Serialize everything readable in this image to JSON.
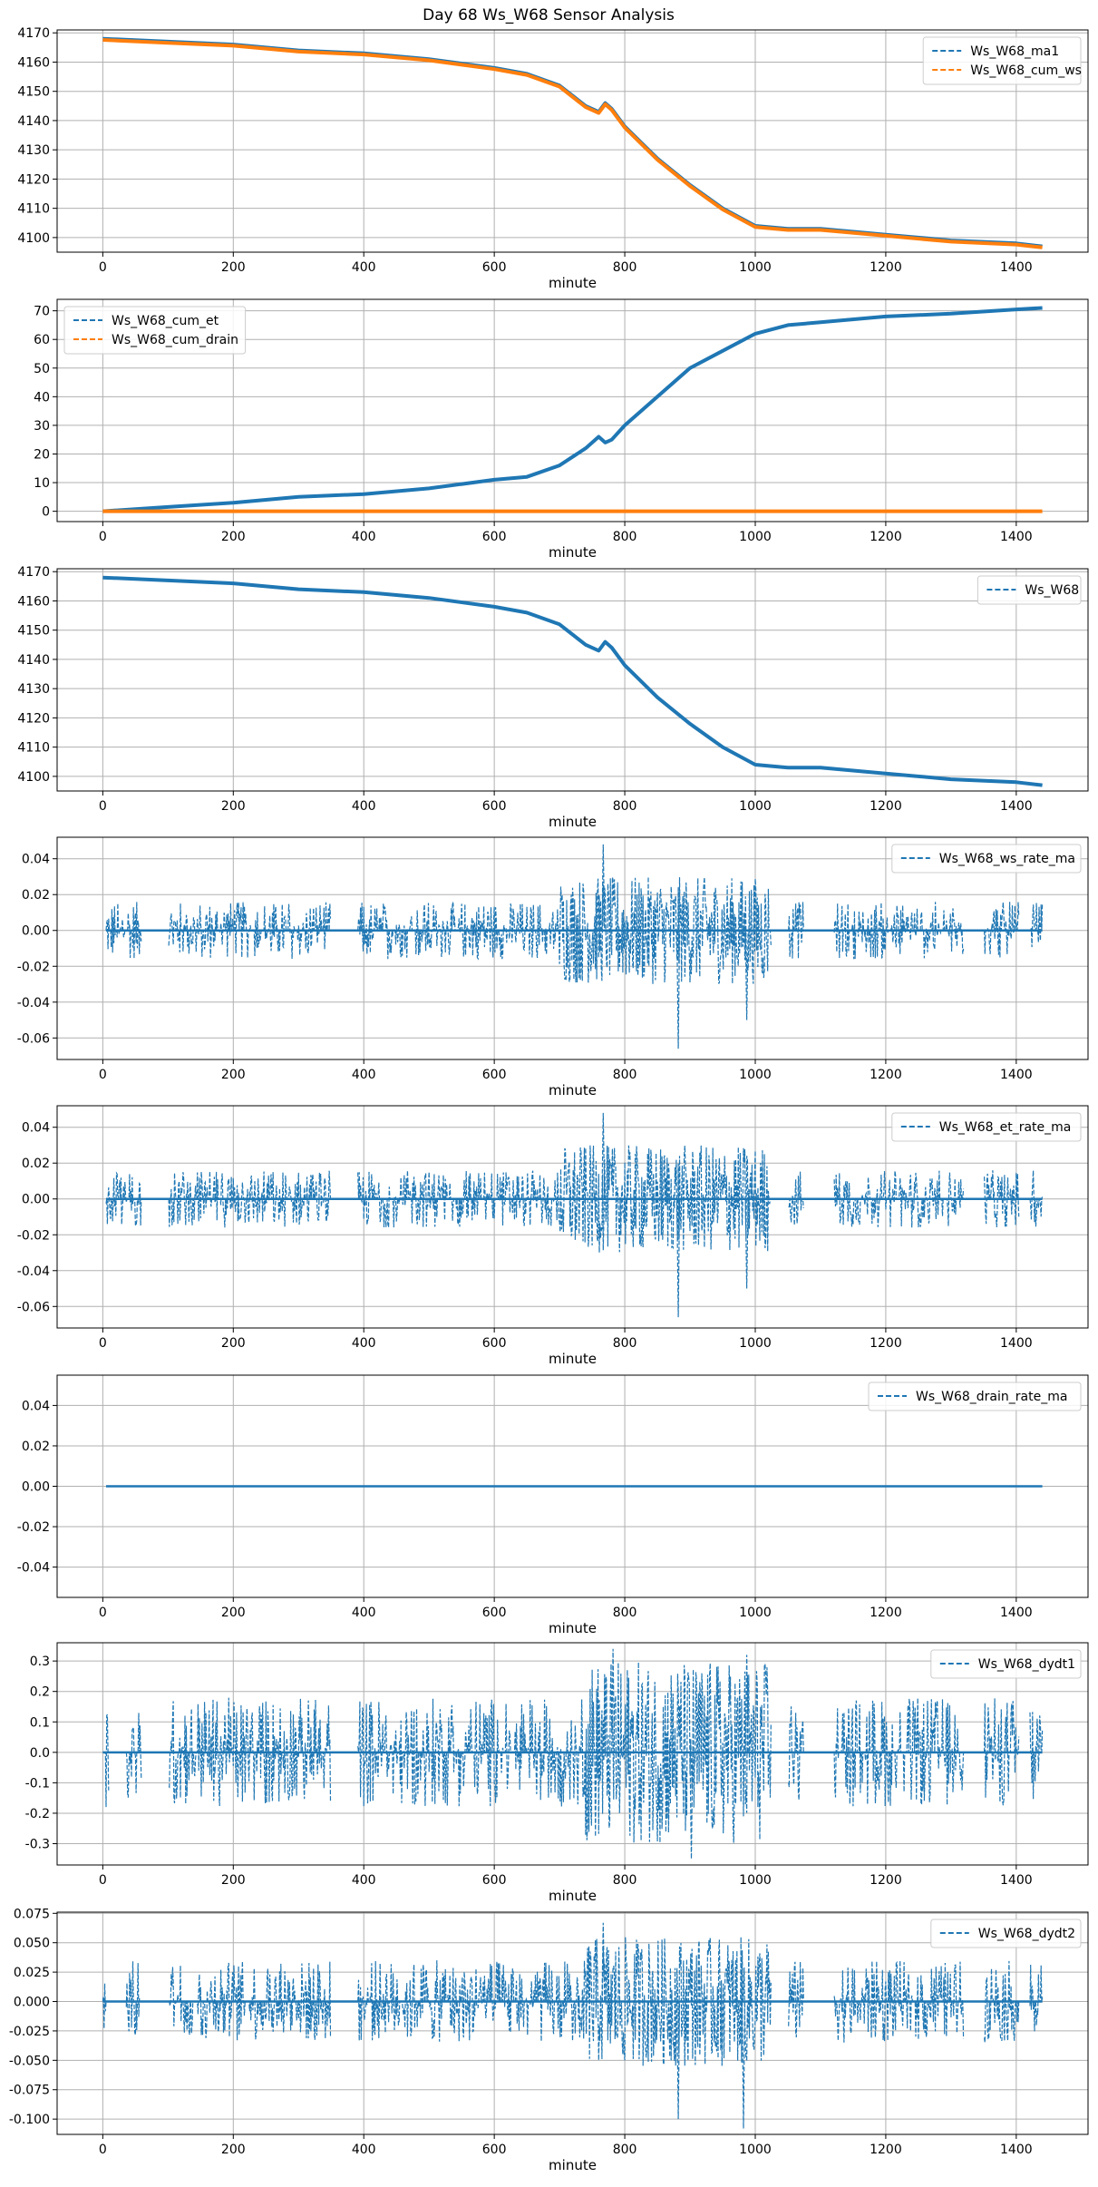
{
  "title": "Day 68 Ws_W68 Sensor Analysis",
  "colors": {
    "blue": "#1f77b4",
    "orange": "#ff7f0e",
    "grid": "#b0b0b0"
  },
  "chart_data": [
    {
      "type": "line",
      "xlabel": "minute",
      "legend_loc": "upper-right",
      "xlim": [
        -70,
        1510
      ],
      "ylim": [
        4095,
        4171
      ],
      "xticks": [
        0,
        200,
        400,
        600,
        800,
        1000,
        1200,
        1400
      ],
      "yticks": [
        4100,
        4110,
        4120,
        4130,
        4140,
        4150,
        4160,
        4170
      ],
      "tick_labels_y": [
        "4100",
        "4110",
        "4120",
        "4130",
        "4140",
        "4150",
        "4160",
        "4170"
      ],
      "series": [
        {
          "name": "Ws_W68_ma1",
          "color": "#1f77b4",
          "style": "dashed",
          "kind": "points",
          "x": [
            0,
            100,
            200,
            300,
            400,
            500,
            600,
            650,
            700,
            740,
            760,
            770,
            780,
            800,
            850,
            900,
            950,
            1000,
            1050,
            1100,
            1200,
            1300,
            1400,
            1440
          ],
          "y": [
            4168,
            4167,
            4166,
            4164,
            4163,
            4161,
            4158,
            4156,
            4152,
            4145,
            4143,
            4146,
            4144,
            4138,
            4127,
            4118,
            4110,
            4104,
            4103,
            4103,
            4101,
            4099,
            4098,
            4097
          ]
        },
        {
          "name": "Ws_W68_cum_ws",
          "color": "#ff7f0e",
          "style": "dashed",
          "kind": "points",
          "x": [
            0,
            100,
            200,
            300,
            400,
            500,
            600,
            650,
            700,
            740,
            760,
            770,
            780,
            800,
            850,
            900,
            950,
            1000,
            1050,
            1100,
            1200,
            1300,
            1400,
            1440
          ],
          "y": [
            4167.6,
            4166.6,
            4165.6,
            4163.6,
            4162.6,
            4160.6,
            4157.6,
            4155.6,
            4151.6,
            4144.6,
            4142.6,
            4145.6,
            4143.6,
            4137.6,
            4126.6,
            4117.6,
            4109.6,
            4103.6,
            4102.6,
            4102.6,
            4100.6,
            4098.6,
            4097.6,
            4096.6
          ]
        }
      ]
    },
    {
      "type": "line",
      "xlabel": "minute",
      "legend_loc": "upper-left",
      "xlim": [
        -70,
        1510
      ],
      "ylim": [
        -3.6,
        74
      ],
      "xticks": [
        0,
        200,
        400,
        600,
        800,
        1000,
        1200,
        1400
      ],
      "yticks": [
        0,
        10,
        20,
        30,
        40,
        50,
        60,
        70
      ],
      "tick_labels_y": [
        "0",
        "10",
        "20",
        "30",
        "40",
        "50",
        "60",
        "70"
      ],
      "series": [
        {
          "name": "Ws_W68_cum_et",
          "color": "#1f77b4",
          "style": "dashed",
          "kind": "points",
          "x": [
            0,
            100,
            200,
            300,
            400,
            500,
            600,
            650,
            700,
            740,
            760,
            770,
            780,
            800,
            850,
            900,
            950,
            1000,
            1050,
            1100,
            1200,
            1300,
            1400,
            1440
          ],
          "y": [
            0,
            1.5,
            3,
            5,
            6,
            8,
            11,
            12,
            16,
            22,
            26,
            24,
            25,
            30,
            40,
            50,
            56,
            62,
            65,
            66,
            68,
            69,
            70.5,
            71
          ]
        },
        {
          "name": "Ws_W68_cum_drain",
          "color": "#ff7f0e",
          "style": "dashed",
          "kind": "points",
          "x": [
            0,
            1440
          ],
          "y": [
            0,
            0
          ]
        }
      ]
    },
    {
      "type": "line",
      "xlabel": "minute",
      "legend_loc": "upper-right",
      "xlim": [
        -70,
        1510
      ],
      "ylim": [
        4095,
        4171
      ],
      "xticks": [
        0,
        200,
        400,
        600,
        800,
        1000,
        1200,
        1400
      ],
      "yticks": [
        4100,
        4110,
        4120,
        4130,
        4140,
        4150,
        4160,
        4170
      ],
      "tick_labels_y": [
        "4100",
        "4110",
        "4120",
        "4130",
        "4140",
        "4150",
        "4160",
        "4170"
      ],
      "series": [
        {
          "name": "Ws_W68",
          "color": "#1f77b4",
          "style": "dashed",
          "kind": "points",
          "x": [
            0,
            100,
            200,
            300,
            400,
            500,
            600,
            650,
            700,
            740,
            760,
            770,
            780,
            800,
            850,
            900,
            950,
            1000,
            1050,
            1100,
            1200,
            1300,
            1400,
            1440
          ],
          "y": [
            4168,
            4167,
            4166,
            4164,
            4163,
            4161,
            4158,
            4156,
            4152,
            4145,
            4143,
            4146,
            4144,
            4138,
            4127,
            4118,
            4110,
            4104,
            4103,
            4103,
            4101,
            4099,
            4098,
            4097
          ]
        }
      ]
    },
    {
      "type": "line",
      "xlabel": "minute",
      "legend_loc": "upper-right",
      "xlim": [
        -70,
        1510
      ],
      "ylim": [
        -0.072,
        0.052
      ],
      "xticks": [
        0,
        200,
        400,
        600,
        800,
        1000,
        1200,
        1400
      ],
      "yticks": [
        -0.06,
        -0.04,
        -0.02,
        0.0,
        0.02,
        0.04
      ],
      "tick_labels_y": [
        "-0.06",
        "-0.04",
        "-0.02",
        "0.00",
        "0.02",
        "0.04"
      ],
      "series": [
        {
          "name": "Ws_W68_ws_rate_ma",
          "color": "#1f77b4",
          "style": "dashed",
          "kind": "noise",
          "x_range": [
            5,
            1440
          ],
          "amp": 0.016,
          "burst_amp": 0.03,
          "burst_range": [
            700,
            1020
          ],
          "spike_x": [
            765,
            880,
            985
          ],
          "spike_y": [
            0.048,
            -0.066,
            -0.05
          ],
          "gaps": [
            [
              60,
              100
            ],
            [
              350,
              390
            ],
            [
              1025,
              1050
            ],
            [
              1075,
              1120
            ],
            [
              1320,
              1350
            ],
            [
              1405,
              1420
            ]
          ]
        }
      ]
    },
    {
      "type": "line",
      "xlabel": "minute",
      "legend_loc": "upper-right",
      "xlim": [
        -70,
        1510
      ],
      "ylim": [
        -0.072,
        0.052
      ],
      "xticks": [
        0,
        200,
        400,
        600,
        800,
        1000,
        1200,
        1400
      ],
      "yticks": [
        -0.06,
        -0.04,
        -0.02,
        0.0,
        0.02,
        0.04
      ],
      "tick_labels_y": [
        "-0.06",
        "-0.04",
        "-0.02",
        "0.00",
        "0.02",
        "0.04"
      ],
      "series": [
        {
          "name": "Ws_W68_et_rate_ma",
          "color": "#1f77b4",
          "style": "dashed",
          "kind": "noise",
          "x_range": [
            5,
            1440
          ],
          "amp": 0.016,
          "burst_amp": 0.03,
          "burst_range": [
            700,
            1020
          ],
          "spike_x": [
            765,
            880,
            985
          ],
          "spike_y": [
            0.048,
            -0.066,
            -0.05
          ],
          "gaps": [
            [
              60,
              100
            ],
            [
              350,
              390
            ],
            [
              1025,
              1050
            ],
            [
              1075,
              1120
            ],
            [
              1320,
              1350
            ],
            [
              1405,
              1420
            ]
          ]
        }
      ]
    },
    {
      "type": "line",
      "xlabel": "minute",
      "legend_loc": "upper-right",
      "xlim": [
        -70,
        1510
      ],
      "ylim": [
        -0.055,
        0.055
      ],
      "xticks": [
        0,
        200,
        400,
        600,
        800,
        1000,
        1200,
        1400
      ],
      "yticks": [
        -0.04,
        -0.02,
        0.0,
        0.02,
        0.04
      ],
      "tick_labels_y": [
        "-0.04",
        "-0.02",
        "0.00",
        "0.02",
        "0.04"
      ],
      "series": [
        {
          "name": "Ws_W68_drain_rate_ma",
          "color": "#1f77b4",
          "style": "dashed",
          "kind": "points",
          "x": [
            5,
            1440
          ],
          "y": [
            0,
            0
          ]
        }
      ]
    },
    {
      "type": "line",
      "xlabel": "minute",
      "legend_loc": "upper-right",
      "xlim": [
        -70,
        1510
      ],
      "ylim": [
        -0.37,
        0.36
      ],
      "xticks": [
        0,
        200,
        400,
        600,
        800,
        1000,
        1200,
        1400
      ],
      "yticks": [
        -0.3,
        -0.2,
        -0.1,
        0.0,
        0.1,
        0.2,
        0.3
      ],
      "tick_labels_y": [
        "-0.3",
        "-0.2",
        "-0.1",
        "0.0",
        "0.1",
        "0.2",
        "0.3"
      ],
      "series": [
        {
          "name": "Ws_W68_dydt1",
          "color": "#1f77b4",
          "style": "dashed",
          "kind": "noise",
          "x_range": [
            0,
            1440
          ],
          "amp": 0.18,
          "burst_amp": 0.3,
          "burst_range": [
            740,
            1020
          ],
          "spike_x": [
            780,
            900,
            985
          ],
          "spike_y": [
            0.34,
            -0.35,
            0.32
          ],
          "gaps": [
            [
              10,
              35
            ],
            [
              60,
              100
            ],
            [
              350,
              390
            ],
            [
              1025,
              1050
            ],
            [
              1075,
              1120
            ],
            [
              1320,
              1350
            ],
            [
              1405,
              1420
            ]
          ]
        }
      ]
    },
    {
      "type": "line",
      "xlabel": "minute",
      "legend_loc": "upper-right",
      "xlim": [
        -70,
        1510
      ],
      "ylim": [
        -0.113,
        0.076
      ],
      "xticks": [
        0,
        200,
        400,
        600,
        800,
        1000,
        1200,
        1400
      ],
      "yticks": [
        -0.1,
        -0.075,
        -0.05,
        -0.025,
        0.0,
        0.025,
        0.05,
        0.075
      ],
      "tick_labels_y": [
        "-0.100",
        "-0.075",
        "-0.050",
        "-0.025",
        "0.000",
        "0.025",
        "0.050",
        "0.075"
      ],
      "series": [
        {
          "name": "Ws_W68_dydt2",
          "color": "#1f77b4",
          "style": "dashed",
          "kind": "noise",
          "x_range": [
            0,
            1440
          ],
          "amp": 0.035,
          "burst_amp": 0.055,
          "burst_range": [
            740,
            1020
          ],
          "spike_x": [
            765,
            880,
            980
          ],
          "spike_y": [
            0.067,
            -0.1,
            -0.108
          ],
          "gaps": [
            [
              10,
              35
            ],
            [
              60,
              100
            ],
            [
              350,
              390
            ],
            [
              1025,
              1050
            ],
            [
              1075,
              1120
            ],
            [
              1320,
              1350
            ],
            [
              1405,
              1420
            ]
          ]
        }
      ]
    }
  ]
}
